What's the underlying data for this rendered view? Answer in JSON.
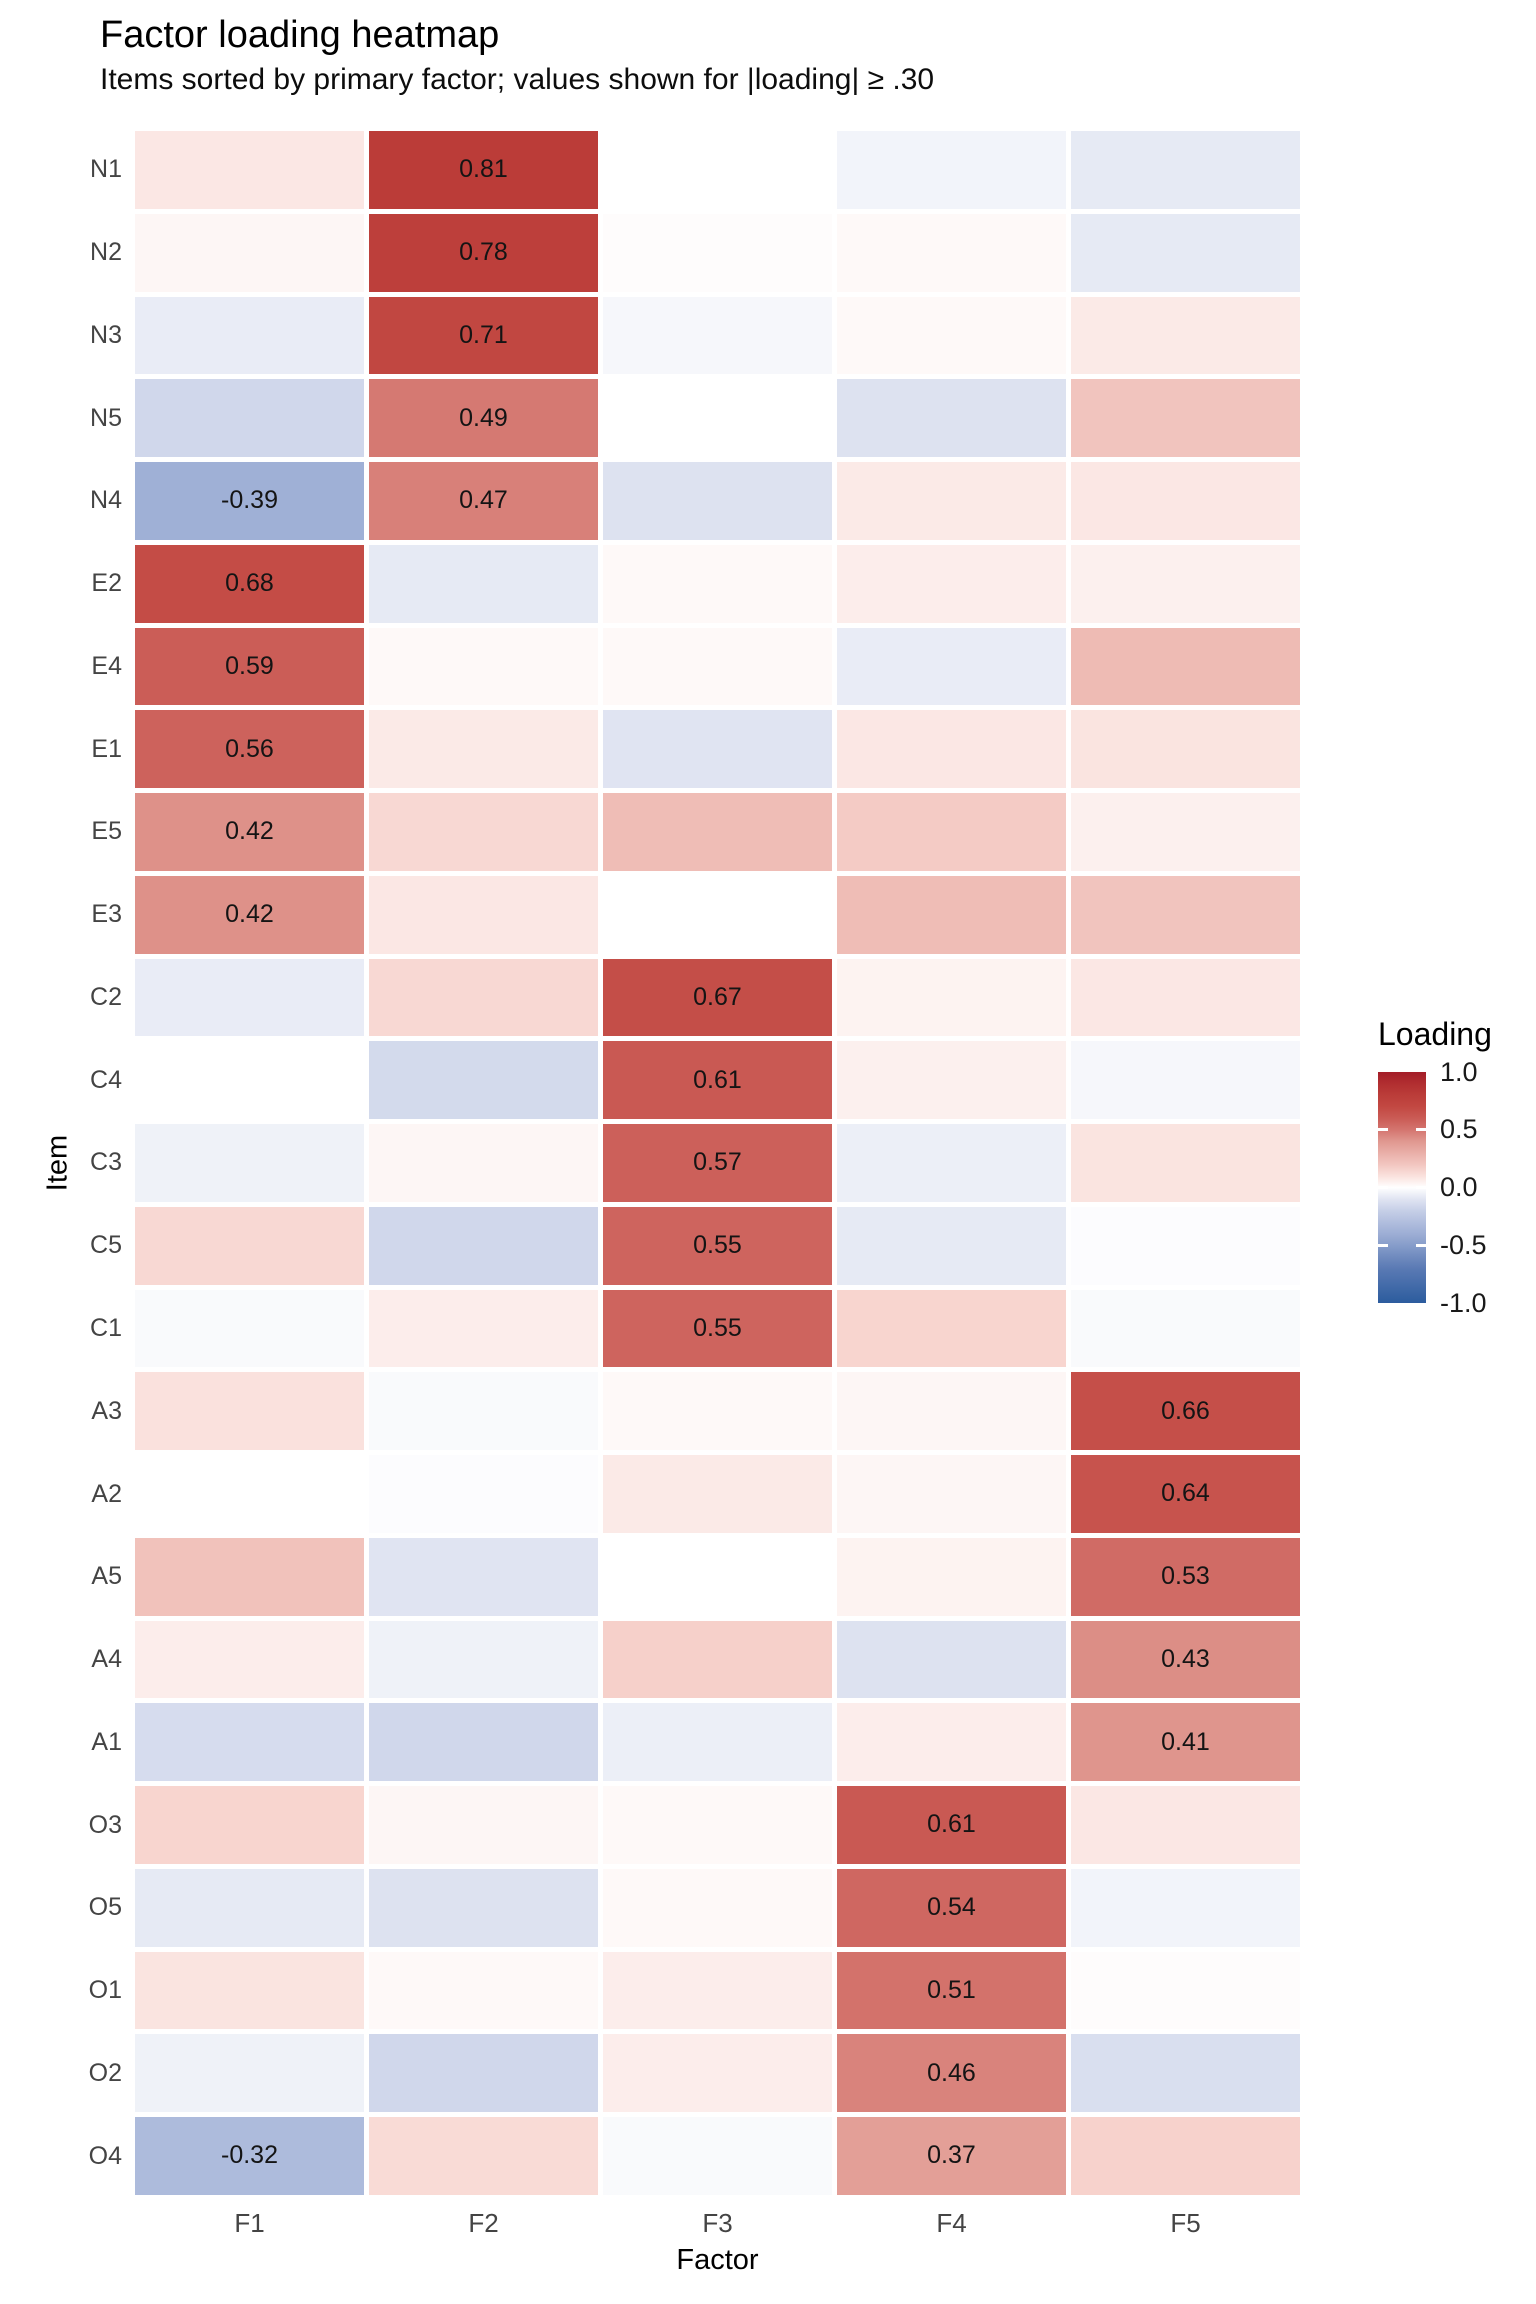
{
  "title": "Factor loading heatmap",
  "subtitle": "Items sorted by primary factor; values shown for |loading| ≥ .30",
  "chart_data": {
    "type": "heatmap",
    "xlabel": "Factor",
    "ylabel": "Item",
    "columns": [
      "F1",
      "F2",
      "F3",
      "F4",
      "F5"
    ],
    "rows": [
      "N1",
      "N2",
      "N3",
      "N5",
      "N4",
      "E2",
      "E4",
      "E1",
      "E5",
      "E3",
      "C2",
      "C4",
      "C3",
      "C5",
      "C1",
      "A3",
      "A2",
      "A5",
      "A4",
      "A1",
      "O3",
      "O5",
      "O1",
      "O2",
      "O4"
    ],
    "values": [
      [
        0.08,
        0.81,
        0.0,
        -0.04,
        -0.08
      ],
      [
        0.03,
        0.78,
        0.01,
        0.02,
        -0.08
      ],
      [
        -0.07,
        0.71,
        -0.03,
        0.02,
        0.07
      ],
      [
        -0.15,
        0.49,
        0.0,
        -0.11,
        0.21
      ],
      [
        -0.39,
        0.47,
        -0.11,
        0.07,
        0.08
      ],
      [
        0.68,
        -0.08,
        0.02,
        0.06,
        0.05
      ],
      [
        0.59,
        0.02,
        0.02,
        -0.07,
        0.25
      ],
      [
        0.56,
        0.07,
        -0.1,
        0.08,
        0.09
      ],
      [
        0.42,
        0.13,
        0.24,
        0.18,
        0.05
      ],
      [
        0.42,
        0.08,
        0.0,
        0.24,
        0.21
      ],
      [
        -0.07,
        0.13,
        0.67,
        0.04,
        0.08
      ],
      [
        0.0,
        -0.14,
        0.61,
        0.05,
        -0.03
      ],
      [
        -0.05,
        0.03,
        0.57,
        -0.06,
        0.09
      ],
      [
        0.13,
        -0.15,
        0.55,
        -0.08,
        -0.01
      ],
      [
        -0.02,
        0.06,
        0.55,
        0.14,
        -0.02
      ],
      [
        0.1,
        -0.02,
        0.02,
        0.03,
        0.66
      ],
      [
        0.0,
        -0.01,
        0.07,
        0.03,
        0.64
      ],
      [
        0.22,
        -0.1,
        0.0,
        0.04,
        0.53
      ],
      [
        0.06,
        -0.05,
        0.16,
        -0.11,
        0.43
      ],
      [
        -0.13,
        -0.15,
        -0.06,
        0.06,
        0.41
      ],
      [
        0.14,
        0.03,
        0.02,
        0.61,
        0.08
      ],
      [
        -0.08,
        -0.11,
        0.02,
        0.54,
        -0.04
      ],
      [
        0.09,
        0.02,
        0.06,
        0.51,
        0.01
      ],
      [
        -0.05,
        -0.15,
        0.06,
        0.46,
        -0.12
      ],
      [
        -0.32,
        0.12,
        -0.02,
        0.37,
        0.15
      ]
    ],
    "label_threshold": 0.3,
    "legend": {
      "title": "Loading",
      "ticks": [
        "1.0",
        "0.5",
        "0.0",
        "-0.5",
        "-1.0"
      ],
      "tick_values": [
        1.0,
        0.5,
        0.0,
        -0.5,
        -1.0
      ],
      "domain": [
        -1,
        1
      ]
    },
    "colors": {
      "positive_max": "#A31D28",
      "mid": "#FFFFFF",
      "negative_max": "#2C5C9E",
      "background": "#FFFFFF",
      "cell_gap": "#FFFFFF",
      "tick_text": "#444444",
      "value_text": "#141414"
    },
    "grid": false,
    "legend_position": "right"
  }
}
